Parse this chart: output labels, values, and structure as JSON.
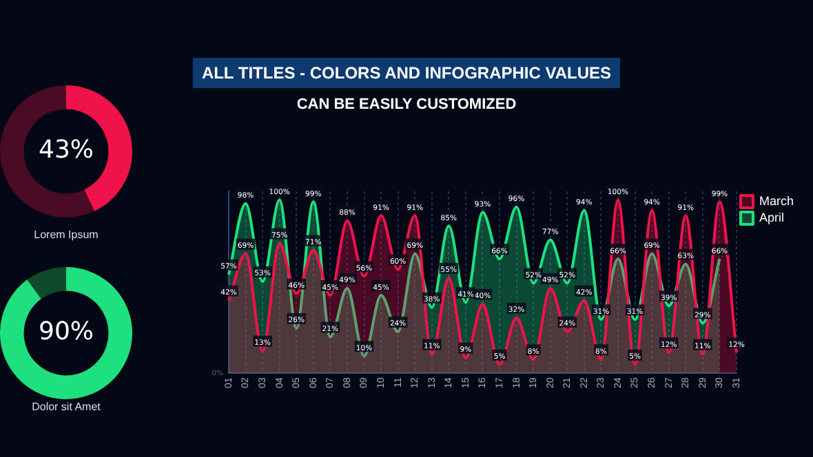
{
  "chart_data": [
    {
      "type": "donut",
      "title": "Lorem Ipsum",
      "categories": [
        null,
        null
      ],
      "values": [
        43,
        57
      ],
      "colors": [
        "#f0124a",
        "#4a0b24"
      ],
      "value_labels": [
        "43%",
        null
      ]
    },
    {
      "type": "donut",
      "title": "Dolor sit Amet",
      "categories": [
        null,
        null
      ],
      "values": [
        90,
        10
      ],
      "colors": [
        "#1ee07e",
        "#0e4a2b"
      ],
      "value_labels": [
        "90%",
        null
      ]
    },
    {
      "type": "area",
      "title": "ALL TITLES - COLORS AND INFOGRAPHIC VALUES",
      "subtitle": "CAN BE EASILY CUSTOMIZED",
      "categories": [
        "01",
        "02",
        "03",
        "04",
        "05",
        "06",
        "07",
        "08",
        "09",
        "10",
        "11",
        "12",
        "13",
        "14",
        "15",
        "16",
        "17",
        "18",
        "19",
        "20",
        "21",
        "22",
        "23",
        "24",
        "25",
        "26",
        "27",
        "28",
        "29",
        "30",
        "31"
      ],
      "ylim": [
        0,
        105
      ],
      "annotations": [
        "0%"
      ],
      "grid": "x",
      "legend": "right",
      "series": [
        {
          "name": "March",
          "color": "#f0124a",
          "values": [
            42,
            69,
            13,
            75,
            46,
            71,
            45,
            88,
            56,
            91,
            60,
            91,
            11,
            55,
            9,
            40,
            5,
            32,
            8,
            49,
            24,
            42,
            8,
            100,
            5,
            94,
            12,
            91,
            11,
            99,
            12
          ],
          "value_labels": [
            "42%",
            "69%",
            "13%",
            "75%",
            "46%",
            "71%",
            "45%",
            "88%",
            "56%",
            "91%",
            "60%",
            "91%",
            "11%",
            "55%",
            "9%",
            "40%",
            "5%",
            "32%",
            "8%",
            "49%",
            "24%",
            "42%",
            "8%",
            "100%",
            "5%",
            "94%",
            "12%",
            "91%",
            "11%",
            "99%",
            "12%"
          ]
        },
        {
          "name": "April",
          "color": "#1ee07e",
          "values": [
            57,
            98,
            53,
            100,
            26,
            99,
            21,
            49,
            10,
            45,
            24,
            69,
            38,
            85,
            41,
            93,
            66,
            96,
            52,
            77,
            52,
            94,
            31,
            66,
            31,
            69,
            39,
            63,
            29,
            66,
            null
          ],
          "value_labels": [
            "57%",
            "98%",
            "53%",
            "100%",
            "26%",
            "99%",
            "21%",
            "49%",
            "10%",
            "45%",
            "24%",
            "69%",
            "38%",
            "85%",
            "41%",
            "93%",
            "66%",
            "96%",
            "52%",
            "77%",
            "52%",
            "94%",
            "31%",
            "66%",
            "31%",
            "69%",
            "39%",
            "63%",
            "29%",
            "66%",
            null
          ]
        }
      ]
    }
  ]
}
